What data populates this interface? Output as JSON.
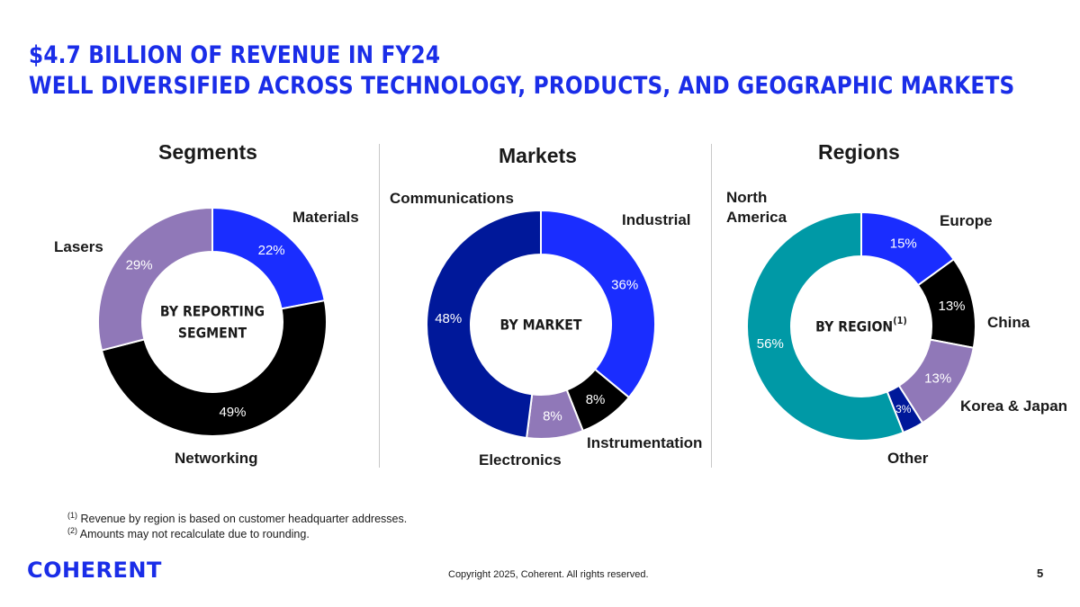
{
  "header": {
    "title_line1": "$4.7 BILLION OF REVENUE IN FY24",
    "title_line2": "WELL DIVERSIFIED ACROSS TECHNOLOGY, PRODUCTS, AND GEOGRAPHIC MARKETS"
  },
  "chart_data": [
    {
      "type": "pie",
      "title": "Segments",
      "center_label": "BY REPORTING SEGMENT",
      "slices": [
        {
          "name": "Materials",
          "value": 22,
          "label": "22%",
          "color": "#1a2dff"
        },
        {
          "name": "Networking",
          "value": 49,
          "label": "49%",
          "color": "#000000"
        },
        {
          "name": "Lasers",
          "value": 29,
          "label": "29%",
          "color": "#9078b8"
        }
      ]
    },
    {
      "type": "pie",
      "title": "Markets",
      "center_label": "BY MARKET",
      "slices": [
        {
          "name": "Industrial",
          "value": 36,
          "label": "36%",
          "color": "#1a2dff"
        },
        {
          "name": "Instrumentation",
          "value": 8,
          "label": "8%",
          "color": "#000000"
        },
        {
          "name": "Electronics",
          "value": 8,
          "label": "8%",
          "color": "#9078b8"
        },
        {
          "name": "Communications",
          "value": 48,
          "label": "48%",
          "color": "#00189a"
        }
      ]
    },
    {
      "type": "pie",
      "title": "Regions",
      "center_label": "BY REGION",
      "center_sup": "(1)",
      "slices": [
        {
          "name": "Europe",
          "value": 15,
          "label": "15%",
          "color": "#1a2dff"
        },
        {
          "name": "China",
          "value": 13,
          "label": "13%",
          "color": "#000000"
        },
        {
          "name": "Korea & Japan",
          "value": 13,
          "label": "13%",
          "color": "#9078b8"
        },
        {
          "name": "Other",
          "value": 3,
          "label": "3%",
          "color": "#00189a"
        },
        {
          "name": "North America",
          "value": 56,
          "label": "56%",
          "color": "#0099a6"
        }
      ]
    }
  ],
  "callouts": {
    "materials": "Materials",
    "lasers": "Lasers",
    "networking": "Networking",
    "communications": "Communications",
    "industrial": "Industrial",
    "instrumentation": "Instrumentation",
    "electronics": "Electronics",
    "north_america_1": "North",
    "north_america_2": "America",
    "europe": "Europe",
    "china": "China",
    "korea_japan": "Korea & Japan",
    "other": "Other"
  },
  "footnotes": [
    {
      "mark": "(1)",
      "text": "Revenue by region is based on customer headquarter addresses."
    },
    {
      "mark": "(2)",
      "text": "Amounts may not recalculate due to rounding."
    }
  ],
  "footer": {
    "logo": "COHERENT",
    "copyright": "Copyright 2025, Coherent. All rights reserved.",
    "page_number": "5"
  }
}
